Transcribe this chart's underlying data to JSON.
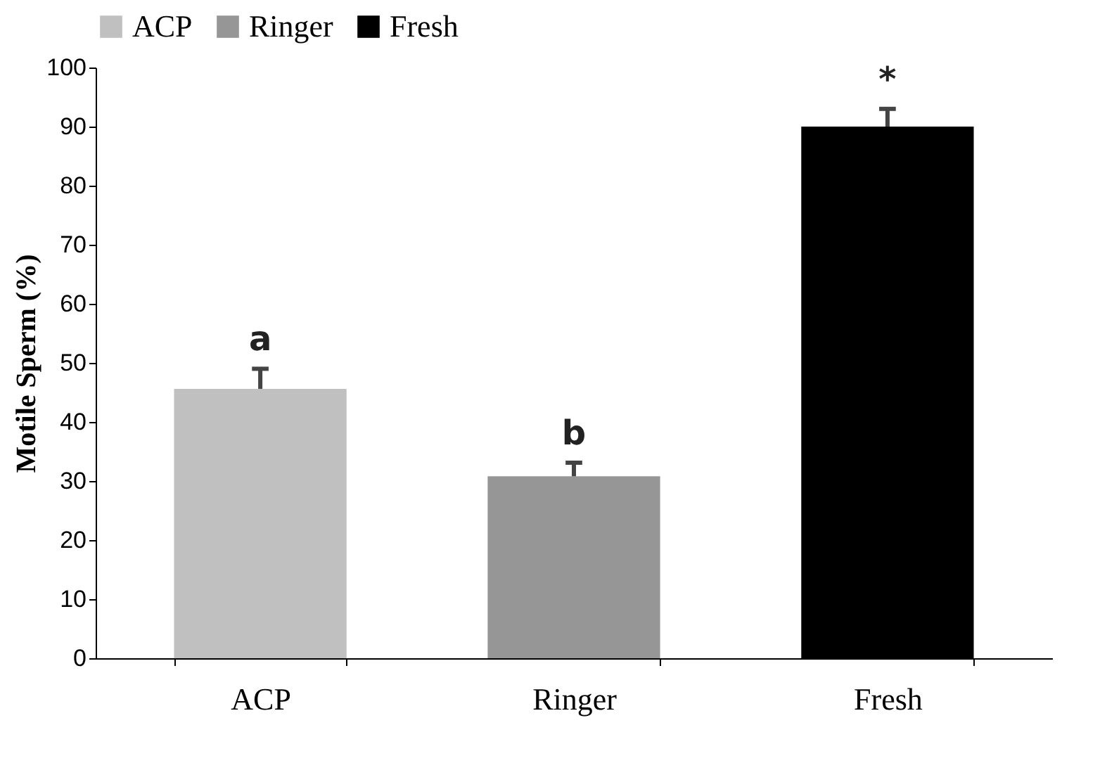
{
  "chart_data": {
    "type": "bar",
    "ylabel": "Motile Sperm (%)",
    "categories": [
      "ACP",
      "Ringer",
      "Fresh"
    ],
    "series": [
      {
        "name": "ACP",
        "color": "#c0c0c0",
        "values": [
          45.6,
          null,
          null
        ],
        "errors": [
          [
            45.6,
            49
          ],
          null,
          null
        ]
      },
      {
        "name": "Ringer",
        "color": "#969696",
        "values": [
          null,
          30.8,
          null
        ],
        "errors": [
          null,
          [
            30.8,
            33.1
          ],
          null
        ]
      },
      {
        "name": "Fresh",
        "color": "#000000",
        "values": [
          null,
          null,
          90
        ],
        "errors": [
          null,
          null,
          [
            90,
            93
          ]
        ]
      }
    ],
    "ylim": [
      0,
      100
    ],
    "yticks": [
      0,
      10,
      20,
      30,
      40,
      50,
      60,
      70,
      80,
      90,
      100
    ],
    "grid": false,
    "legend": "top",
    "annotations": [
      "a",
      "b",
      "*"
    ]
  }
}
